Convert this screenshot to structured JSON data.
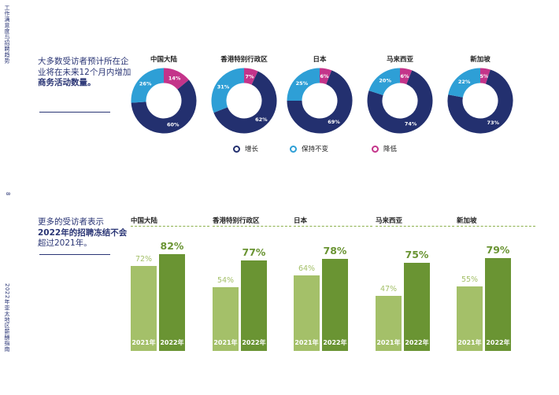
{
  "sidebar": {
    "top": "工作满意度与招聘趋势",
    "page_number": "8",
    "bottom": "2022年亚太地区薪酬指南"
  },
  "intro1": {
    "p1": "大多数受访者预计所在企业将在未来12个月内增加",
    "p2": "商务活动数量。"
  },
  "intro2": {
    "p1": "更多的受访者表示",
    "p2": "2022年的招聘冻结不会",
    "p3": "超过2021年。"
  },
  "colors": {
    "increase": "#23306f",
    "unchanged": "#2e9fd6",
    "decrease": "#c4348a",
    "bar_2021": "#a4c069",
    "bar_2022": "#6a9433",
    "text_navy": "#2a3575"
  },
  "legend": [
    {
      "label": "增长",
      "color": "#23306f"
    },
    {
      "label": "保持不变",
      "color": "#2e9fd6"
    },
    {
      "label": "降低",
      "color": "#c4348a"
    }
  ],
  "chart_data": [
    {
      "type": "pie",
      "categories": [
        "中国大陆",
        "香港特别行政区",
        "日本",
        "马来西亚",
        "新加坡"
      ],
      "series": [
        {
          "name": "增长",
          "values": [
            60,
            62,
            69,
            74,
            73
          ]
        },
        {
          "name": "保持不变",
          "values": [
            26,
            31,
            25,
            20,
            22
          ]
        },
        {
          "name": "降低",
          "values": [
            14,
            7,
            6,
            6,
            5
          ]
        }
      ],
      "legend_position": "bottom"
    },
    {
      "type": "bar",
      "categories": [
        "中国大陆",
        "香港特别行政区",
        "日本",
        "马来西亚",
        "新加坡"
      ],
      "series": [
        {
          "name": "2021年",
          "values": [
            72,
            54,
            64,
            47,
            55
          ]
        },
        {
          "name": "2022年",
          "values": [
            82,
            77,
            78,
            75,
            79
          ]
        }
      ],
      "ylim": [
        0,
        100
      ],
      "grid": false
    }
  ]
}
